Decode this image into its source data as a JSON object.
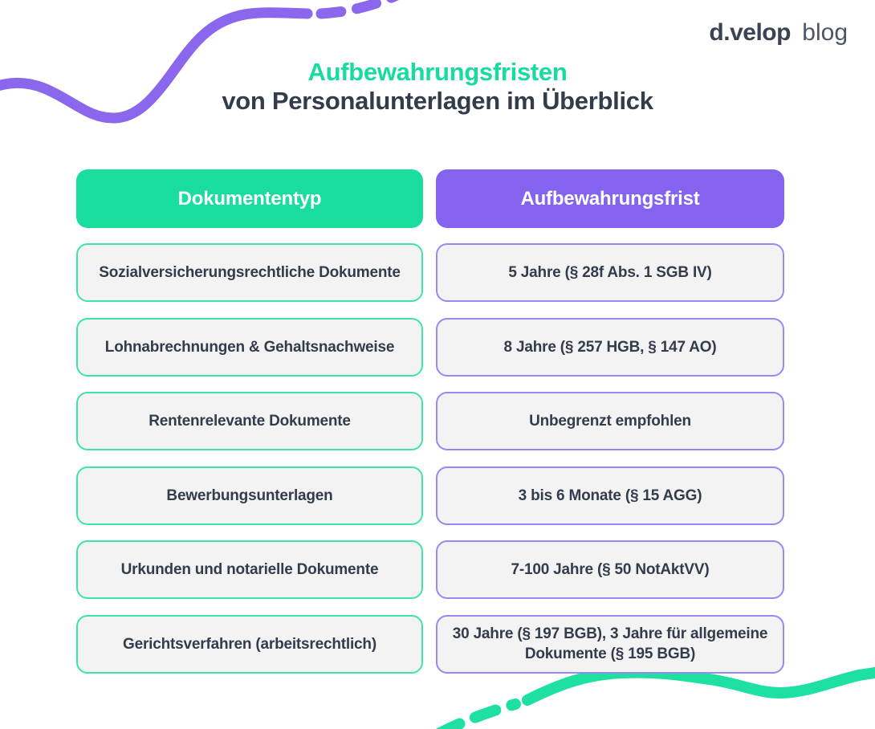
{
  "logo": {
    "brand": "d.velop",
    "suffix": "blog"
  },
  "title": {
    "line1": "Aufbewahrungsfristen",
    "line2": "von Personalunterlagen im Überblick"
  },
  "table": {
    "columns": [
      {
        "label": "Dokumententyp",
        "header_color": "#19dd9d"
      },
      {
        "label": "Aufbewahrungsfrist",
        "header_color": "#8464ef"
      }
    ],
    "rows": [
      {
        "dokumententyp": "Sozialversicherungsrechtliche Dokumente",
        "aufbewahrungsfrist": "5 Jahre (§ 28f Abs. 1 SGB IV)"
      },
      {
        "dokumententyp": "Lohnabrechnungen & Gehaltsnachweise",
        "aufbewahrungsfrist": "8 Jahre (§ 257 HGB, § 147 AO)"
      },
      {
        "dokumententyp": "Rentenrelevante Dokumente",
        "aufbewahrungsfrist": "Unbegrenzt empfohlen"
      },
      {
        "dokumententyp": "Bewerbungsunterlagen",
        "aufbewahrungsfrist": "3 bis 6 Monate (§ 15 AGG)"
      },
      {
        "dokumententyp": "Urkunden und notarielle Dokumente",
        "aufbewahrungsfrist": "7-100 Jahre (§ 50 NotAktVV)"
      },
      {
        "dokumententyp": "Gerichtsverfahren (arbeitsrechtlich)",
        "aufbewahrungsfrist": "30 Jahre (§ 197 BGB), 3 Jahre für allgemeine Dokumente (§ 195 BGB)"
      }
    ]
  },
  "colors": {
    "green": "#19dd9d",
    "green_border": "#3ee3ac",
    "green_wave": "#1ee0a2",
    "purple": "#8464ef",
    "purple_border": "#9d87f2",
    "purple_wave": "#8a67ec",
    "dark_text": "#333c4b",
    "cell_background": "#f3f3f4"
  }
}
